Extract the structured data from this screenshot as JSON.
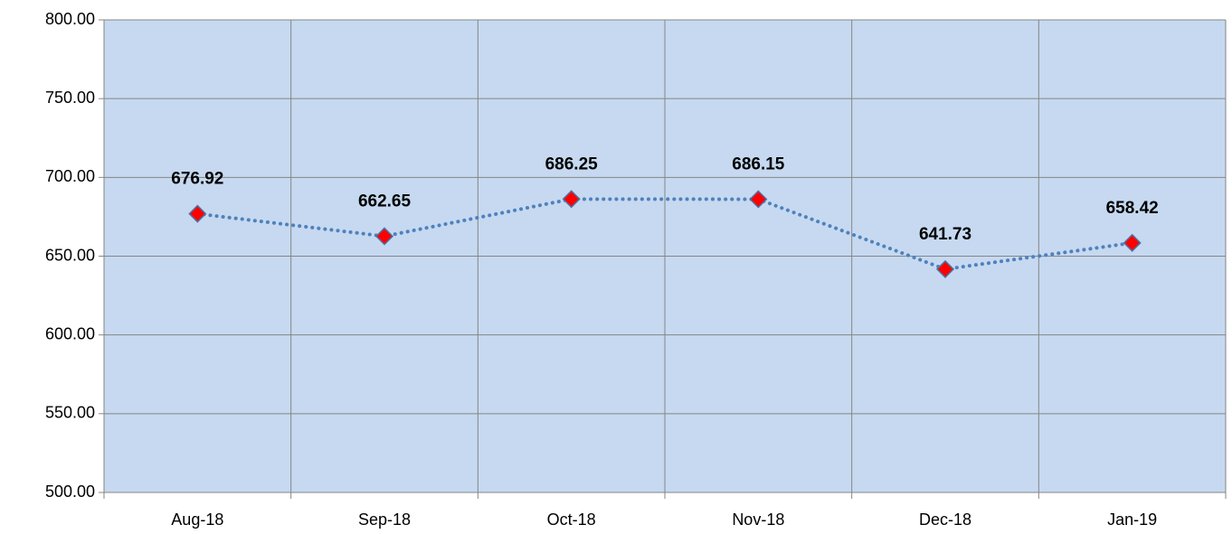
{
  "chart_data": {
    "type": "line",
    "categories": [
      "Aug-18",
      "Sep-18",
      "Oct-18",
      "Nov-18",
      "Dec-18",
      "Jan-19"
    ],
    "series": [
      {
        "color": "#4f81bd",
        "marker_color": "#ff0000",
        "values": [
          676.92,
          662.65,
          686.25,
          686.15,
          641.73,
          658.42
        ]
      }
    ],
    "ylim": [
      500,
      800
    ],
    "yticks": [
      {
        "value": 500,
        "label": "500.00"
      },
      {
        "value": 550,
        "label": "550.00"
      },
      {
        "value": 600,
        "label": "600.00"
      },
      {
        "value": 650,
        "label": "650.00"
      },
      {
        "value": 700,
        "label": "700.00"
      },
      {
        "value": 750,
        "label": "750.00"
      },
      {
        "value": 800,
        "label": "800.00"
      }
    ],
    "grid": true,
    "background": "#c6d9f0"
  }
}
